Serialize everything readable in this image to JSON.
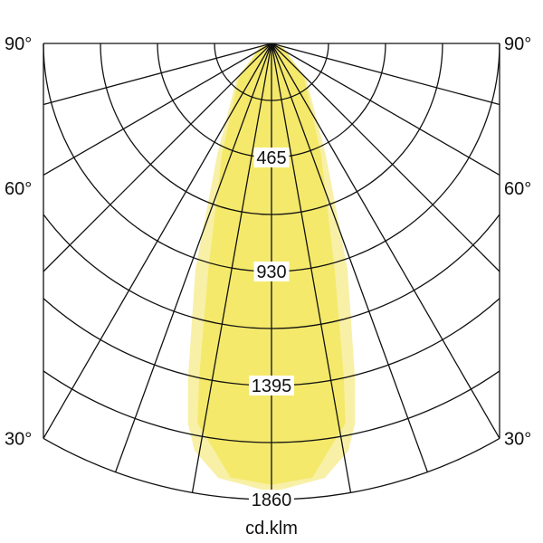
{
  "chart_data": {
    "type": "polar",
    "unit_label": "cd.klm",
    "radial_ticks": [
      465,
      930,
      1395,
      1860
    ],
    "radial_max": 1860,
    "radial_gridlines": 8,
    "angle_ticks": [
      {
        "label": "90°",
        "angle": 90
      },
      {
        "label": "60°",
        "angle": 60
      },
      {
        "label": "30°",
        "angle": 30
      }
    ],
    "spoke_angles": [
      0,
      10,
      20,
      30,
      45,
      60,
      75,
      90
    ],
    "grid": true,
    "series": [
      {
        "color": "#f8f0a6",
        "points": [
          [
            0,
            1830
          ],
          [
            7,
            1785
          ],
          [
            10.7,
            1690
          ],
          [
            12.4,
            1586
          ],
          [
            14,
            1406
          ],
          [
            18.6,
            973
          ],
          [
            26,
            505
          ],
          [
            45,
            200
          ],
          [
            70,
            50
          ],
          [
            90,
            0
          ]
        ]
      },
      {
        "color": "#f4e96a",
        "points": [
          [
            0,
            1800
          ],
          [
            5.4,
            1778
          ],
          [
            8,
            1676
          ],
          [
            11,
            1579
          ],
          [
            12.2,
            1397
          ],
          [
            15.6,
            958
          ],
          [
            24,
            497
          ],
          [
            44,
            191
          ],
          [
            70,
            50
          ],
          [
            90,
            0
          ]
        ]
      }
    ]
  }
}
